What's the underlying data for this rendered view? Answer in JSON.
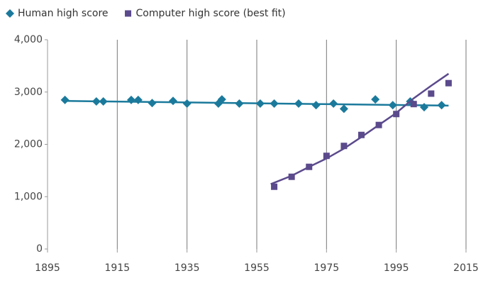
{
  "chart_data": {
    "type": "scatter",
    "series": [
      {
        "name": "Human high score",
        "color": "#1b7a9c",
        "marker": "diamond",
        "x": [
          1900,
          1909,
          1911,
          1919,
          1921,
          1925,
          1931,
          1935,
          1944,
          1945,
          1950,
          1956,
          1960,
          1967,
          1972,
          1977,
          1980,
          1989,
          1994,
          1999,
          2003,
          2008
        ],
        "values": [
          2850,
          2820,
          2820,
          2850,
          2850,
          2790,
          2830,
          2780,
          2780,
          2860,
          2780,
          2780,
          2780,
          2780,
          2750,
          2780,
          2680,
          2860,
          2750,
          2820,
          2710,
          2750
        ],
        "trend": {
          "x": [
            1900,
            2010
          ],
          "values": [
            2830,
            2740
          ]
        }
      },
      {
        "name": "Computer high score (best fit)",
        "color": "#5b4a8c",
        "marker": "square",
        "x": [
          1960,
          1965,
          1970,
          1975,
          1980,
          1985,
          1990,
          1995,
          2000,
          2005,
          2010
        ],
        "values": [
          1190,
          1380,
          1570,
          1780,
          1970,
          2180,
          2370,
          2580,
          2770,
          2970,
          3170
        ],
        "trend": {
          "x": [
            1959,
            1965,
            1970,
            1975,
            1980,
            1985,
            1990,
            1995,
            2000,
            2005,
            2010
          ],
          "values": [
            1240,
            1400,
            1570,
            1730,
            1920,
            2140,
            2370,
            2600,
            2880,
            3120,
            3350
          ]
        }
      }
    ],
    "xlim": [
      1895,
      2015
    ],
    "xticks": [
      1895,
      1915,
      1935,
      1955,
      1975,
      1995,
      2015
    ],
    "ylim": [
      0,
      4000
    ],
    "yticks": [
      0,
      {
        "value": 1000,
        "label": "1,000"
      },
      {
        "value": 2000,
        "label": "2,000"
      },
      {
        "value": 3000,
        "label": "3,000"
      },
      {
        "value": 4000,
        "label": "4,000"
      }
    ],
    "grid": "vertical",
    "legend": "top-left"
  }
}
